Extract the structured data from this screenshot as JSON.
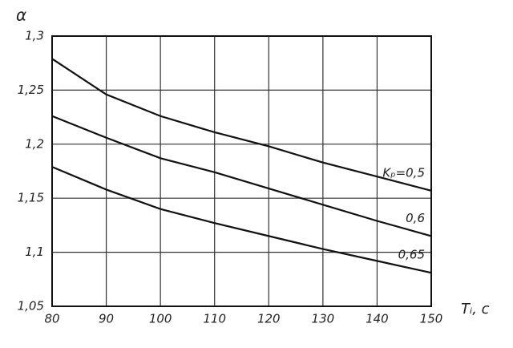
{
  "chart_data": {
    "type": "line",
    "x_label": "Tᵢ, c",
    "y_label": "α",
    "x": [
      80,
      90,
      100,
      110,
      120,
      130,
      140,
      150
    ],
    "series": [
      {
        "name": "Kₚ=0,5",
        "color": "#111111",
        "values": [
          1.279,
          1.246,
          1.226,
          1.211,
          1.198,
          1.183,
          1.17,
          1.157
        ]
      },
      {
        "name": "0,6",
        "color": "#111111",
        "values": [
          1.226,
          1.206,
          1.187,
          1.174,
          1.159,
          1.144,
          1.129,
          1.115
        ]
      },
      {
        "name": "0,65",
        "color": "#111111",
        "values": [
          1.179,
          1.158,
          1.14,
          1.127,
          1.115,
          1.103,
          1.092,
          1.081
        ]
      }
    ],
    "xlim": [
      80,
      150
    ],
    "xticks": [
      80,
      90,
      100,
      110,
      120,
      130,
      140,
      150
    ],
    "ylim": [
      1.05,
      1.3
    ],
    "yticks": [
      {
        "value": 1.05,
        "label": "1,05"
      },
      {
        "value": 1.1,
        "label": "1,1"
      },
      {
        "value": 1.15,
        "label": "1,15"
      },
      {
        "value": 1.2,
        "label": "1,2"
      },
      {
        "value": 1.25,
        "label": "1,25"
      },
      {
        "value": 1.3,
        "label": "1,3"
      }
    ],
    "grid": true
  }
}
